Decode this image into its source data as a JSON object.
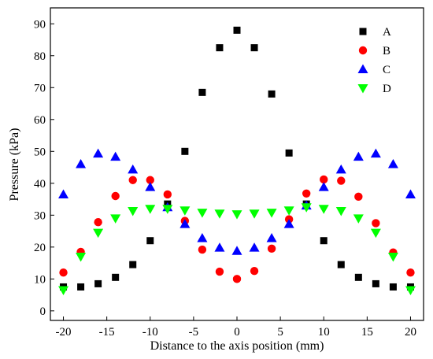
{
  "chart_data": {
    "type": "scatter",
    "title": "",
    "xlabel": "Distance to the axis position (mm)",
    "ylabel": "Pressure (kPa)",
    "xlim": [
      -21.5,
      21.5
    ],
    "ylim": [
      -3,
      95
    ],
    "xticks": [
      -20,
      -15,
      -10,
      -5,
      0,
      5,
      10,
      15,
      20
    ],
    "yticks": [
      0,
      10,
      20,
      30,
      40,
      50,
      60,
      70,
      80,
      90
    ],
    "legend_position": "top-right",
    "x": [
      -20,
      -18,
      -16,
      -14,
      -12,
      -10,
      -8,
      -6,
      -4,
      -2,
      0,
      2,
      4,
      6,
      8,
      10,
      12,
      14,
      16,
      18,
      20
    ],
    "series": [
      {
        "name": "A",
        "marker": "square",
        "color": "#000000",
        "values": [
          7.5,
          7.5,
          8.5,
          10.5,
          14.5,
          22,
          33.5,
          50,
          68.5,
          82.5,
          88,
          82.5,
          68,
          49.5,
          33.5,
          22,
          14.5,
          10.5,
          8.5,
          7.5,
          7.5
        ]
      },
      {
        "name": "B",
        "marker": "circle",
        "color": "#ff0000",
        "values": [
          12,
          18.5,
          27.8,
          36,
          41,
          41,
          36.5,
          28.2,
          19.2,
          12.3,
          10,
          12.5,
          19.5,
          28.7,
          36.8,
          41.2,
          40.8,
          35.8,
          27.5,
          18.3,
          12
        ]
      },
      {
        "name": "C",
        "marker": "triangle-up",
        "color": "#0000ff",
        "values": [
          36.5,
          46,
          49.3,
          48.3,
          44.3,
          38.8,
          32.5,
          27.2,
          22.8,
          19.8,
          18.8,
          19.8,
          22.8,
          27.2,
          33,
          38.8,
          44.3,
          48.3,
          49.3,
          46,
          36.5
        ]
      },
      {
        "name": "D",
        "marker": "triangle-down",
        "color": "#00ff00",
        "values": [
          6.5,
          17,
          24.5,
          29,
          31.3,
          32,
          32,
          31.5,
          30.8,
          30.5,
          30.3,
          30.5,
          30.8,
          31.5,
          32.5,
          32,
          31.3,
          29,
          24.5,
          17,
          6.5
        ]
      }
    ]
  }
}
